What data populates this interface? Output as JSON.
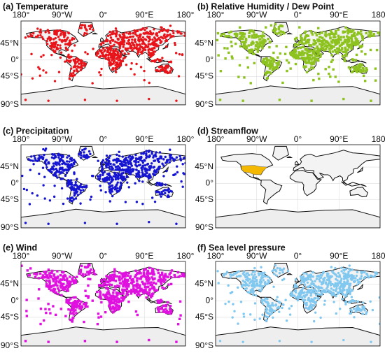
{
  "panels": [
    {
      "title": "(a) Temperature",
      "color": "#e8141a",
      "marker": "circle"
    },
    {
      "title": "(b) Relative Humidity / Dew Point",
      "color": "#8dc21f",
      "marker": "square"
    },
    {
      "title": "(c) Precipitation",
      "color": "#1414d2",
      "marker": "circle"
    },
    {
      "title": "(d) Streamflow",
      "color": "#f5b800",
      "marker": "region"
    },
    {
      "title": "(e) Wind",
      "color": "#e010e0",
      "marker": "square"
    },
    {
      "title": "(f) Sea level pressure",
      "color": "#80c8f0",
      "marker": "circle"
    }
  ],
  "lon_ticks": [
    {
      "value": -180,
      "label": "180°"
    },
    {
      "value": -90,
      "label": "90°W"
    },
    {
      "value": 0,
      "label": "0°"
    },
    {
      "value": 90,
      "label": "90°E"
    },
    {
      "value": 180,
      "label": "180°"
    }
  ],
  "lat_ticks": [
    {
      "value": 45,
      "label": "45°N"
    },
    {
      "value": 0,
      "label": "0°"
    },
    {
      "value": -45,
      "label": "45°S"
    },
    {
      "value": -90,
      "label": "90°S"
    }
  ]
}
